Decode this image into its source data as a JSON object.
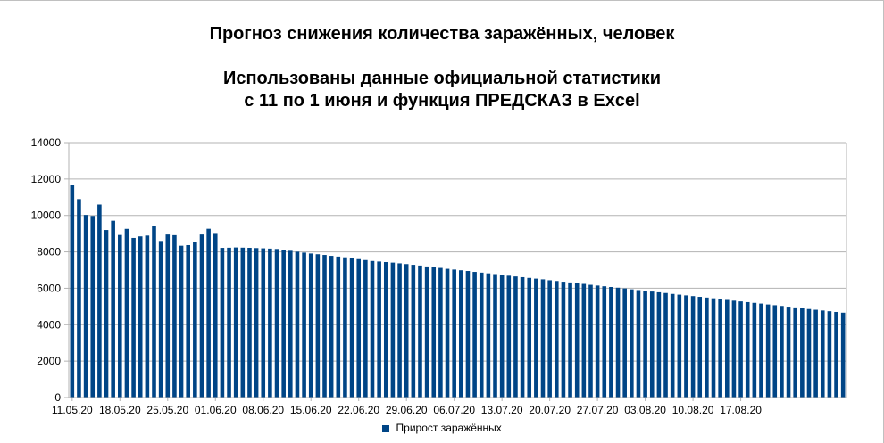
{
  "chart_data": {
    "type": "bar",
    "title": "Прогноз снижения количества заражённых, человек",
    "subtitle_line1": "Использованы данные официальной статистики",
    "subtitle_line2": "с 11 по 1 июня и функция ПРЕДСКАЗ в Excel",
    "ylim": [
      0,
      14000
    ],
    "yticks": [
      0,
      2000,
      4000,
      6000,
      8000,
      10000,
      12000,
      14000
    ],
    "xtick_labels": [
      "11.05.20",
      "18.05.20",
      "25.05.20",
      "01.06.20",
      "08.06.20",
      "15.06.20",
      "22.06.20",
      "29.06.20",
      "06.07.20",
      "13.07.20",
      "20.07.20",
      "27.07.20",
      "03.08.20",
      "10.08.20",
      "17.08.20"
    ],
    "xtick_every": 7,
    "grid": true,
    "legend_position": "bottom",
    "series": [
      {
        "name": "Прирост заражённых",
        "color": "#004586",
        "values": [
          11656,
          10899,
          10028,
          9974,
          10598,
          9200,
          9709,
          8926,
          9263,
          8764,
          8849,
          8894,
          9434,
          8599,
          8952,
          8915,
          8338,
          8371,
          8536,
          8952,
          9268,
          9035,
          8221,
          8229,
          8243,
          8233,
          8224,
          8210,
          8196,
          8180,
          8160,
          8110,
          8060,
          8010,
          7960,
          7910,
          7870,
          7830,
          7780,
          7740,
          7700,
          7650,
          7600,
          7550,
          7500,
          7470,
          7440,
          7410,
          7370,
          7330,
          7290,
          7250,
          7200,
          7160,
          7120,
          7070,
          7030,
          6990,
          6950,
          6900,
          6860,
          6820,
          6780,
          6740,
          6690,
          6650,
          6610,
          6570,
          6530,
          6490,
          6440,
          6400,
          6360,
          6320,
          6280,
          6240,
          6190,
          6150,
          6110,
          6070,
          6030,
          5990,
          5940,
          5900,
          5860,
          5820,
          5780,
          5740,
          5690,
          5650,
          5610,
          5570,
          5530,
          5490,
          5450,
          5400,
          5360,
          5320,
          5280,
          5240,
          5200,
          5160,
          5110,
          5070,
          5030,
          4990,
          4950,
          4910,
          4860,
          4820,
          4780,
          4740,
          4700,
          4660
        ]
      }
    ]
  }
}
